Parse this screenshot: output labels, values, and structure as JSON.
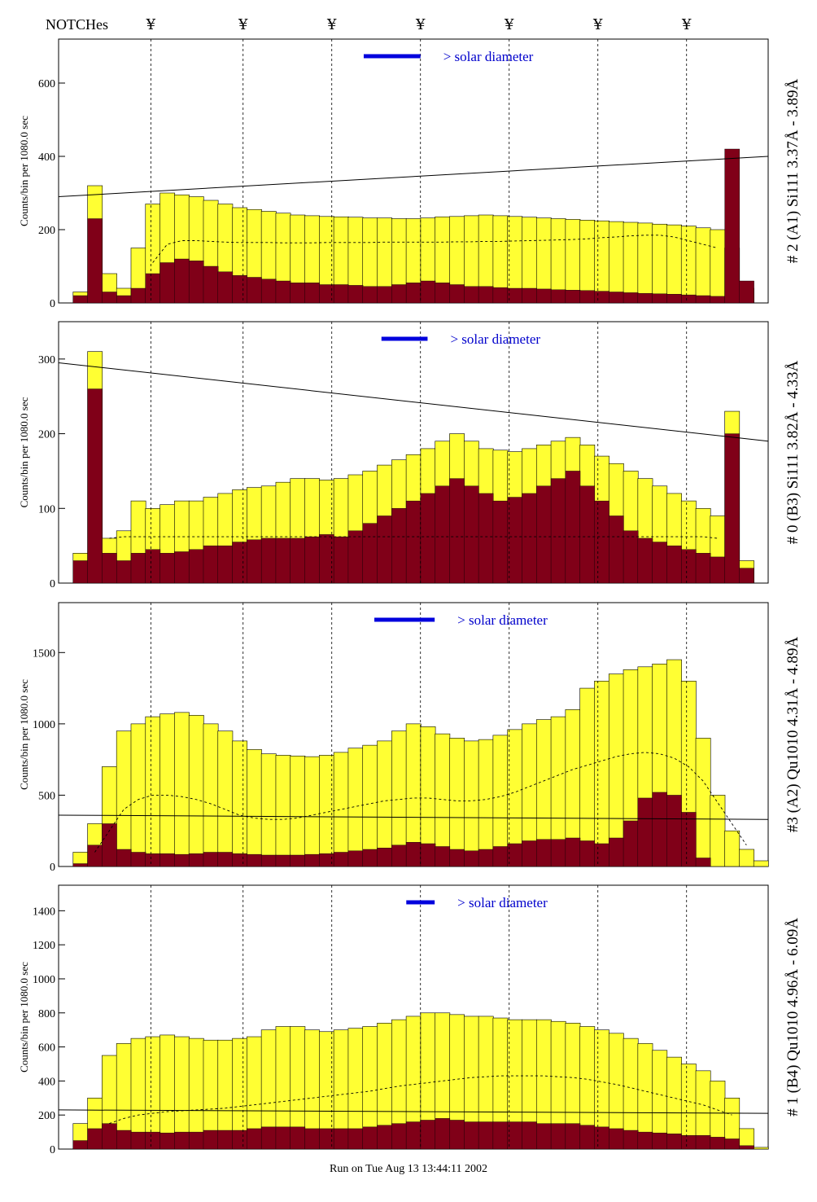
{
  "figure": {
    "notch_title": "NOTCHes",
    "notch_marker": "¥",
    "legend_text": "> solar diameter",
    "ylabel_counts": "Counts/bin per",
    "ylabel_exposure": "1080.0 sec",
    "footer": "Run on Tue Aug 13 13:44:11 2002",
    "colors": {
      "fill_total": "#ffff33",
      "fill_sub": "#800018",
      "legend_bar": "#0000dd",
      "legend_text": "#0000cc",
      "line": "#000000"
    }
  },
  "chart_data": [
    {
      "type": "bar",
      "title": "# 2 (A1) Si111  3.37Å - 3.89Å",
      "ylabel": "Counts/bin per  1080.0 sec",
      "ylim": [
        0,
        720
      ],
      "yticks": [
        0,
        200,
        400,
        600
      ],
      "notches": [
        0.13,
        0.26,
        0.385,
        0.51,
        0.635,
        0.76,
        0.885
      ],
      "series": [
        {
          "name": "total counts",
          "values": [
            0,
            30,
            320,
            80,
            40,
            150,
            270,
            300,
            295,
            290,
            280,
            270,
            260,
            255,
            250,
            245,
            240,
            238,
            236,
            235,
            234,
            232,
            232,
            230,
            230,
            232,
            235,
            236,
            238,
            240,
            238,
            236,
            234,
            232,
            230,
            228,
            226,
            224,
            222,
            220,
            218,
            215,
            213,
            210,
            205,
            200,
            150,
            40,
            0
          ]
        },
        {
          "name": "subset counts",
          "values": [
            0,
            20,
            230,
            30,
            20,
            40,
            80,
            110,
            120,
            115,
            100,
            85,
            75,
            70,
            65,
            60,
            55,
            55,
            50,
            50,
            48,
            45,
            45,
            50,
            55,
            60,
            55,
            50,
            45,
            45,
            42,
            40,
            40,
            38,
            36,
            35,
            34,
            32,
            30,
            28,
            26,
            25,
            24,
            22,
            20,
            18,
            420,
            60,
            0
          ]
        }
      ],
      "continuum": {
        "name": "background model",
        "values": [
          0,
          0,
          0,
          0,
          0,
          0,
          110,
          160,
          170,
          170,
          168,
          166,
          165,
          165,
          165,
          164,
          164,
          164,
          165,
          165,
          165,
          165,
          166,
          166,
          166,
          166,
          166,
          167,
          167,
          168,
          168,
          169,
          170,
          171,
          172,
          173,
          175,
          178,
          180,
          183,
          185,
          185,
          180,
          170,
          160,
          150,
          0,
          0,
          0
        ]
      },
      "trend_line": [
        290,
        400
      ],
      "legend_bar_at": [
        0.43,
        0.51
      ]
    },
    {
      "type": "bar",
      "title": "# 0 (B3) Si111  3.82Å - 4.33Å",
      "ylabel": "Counts/bin per  1080.0 sec",
      "ylim": [
        0,
        350
      ],
      "yticks": [
        0,
        100,
        200,
        300
      ],
      "notches": [
        0.13,
        0.26,
        0.385,
        0.51,
        0.635,
        0.76,
        0.885
      ],
      "series": [
        {
          "name": "total counts",
          "values": [
            0,
            40,
            310,
            60,
            70,
            110,
            100,
            105,
            110,
            110,
            115,
            120,
            125,
            128,
            130,
            135,
            140,
            140,
            138,
            140,
            145,
            150,
            158,
            165,
            172,
            180,
            190,
            200,
            190,
            180,
            178,
            176,
            180,
            185,
            190,
            195,
            185,
            170,
            160,
            150,
            140,
            130,
            120,
            110,
            100,
            90,
            230,
            30,
            0
          ]
        },
        {
          "name": "subset counts",
          "values": [
            0,
            30,
            260,
            40,
            30,
            40,
            45,
            40,
            42,
            45,
            50,
            50,
            55,
            58,
            60,
            60,
            60,
            62,
            65,
            62,
            70,
            80,
            90,
            100,
            110,
            120,
            130,
            140,
            130,
            120,
            110,
            115,
            120,
            130,
            140,
            150,
            130,
            110,
            90,
            70,
            60,
            55,
            50,
            45,
            40,
            35,
            200,
            20,
            0
          ]
        }
      ],
      "continuum": {
        "name": "background model",
        "values": [
          0,
          0,
          0,
          60,
          62,
          62,
          62,
          62,
          62,
          62,
          62,
          62,
          62,
          62,
          62,
          62,
          62,
          62,
          62,
          62,
          62,
          62,
          62,
          62,
          62,
          62,
          62,
          62,
          62,
          62,
          62,
          62,
          62,
          62,
          62,
          62,
          62,
          62,
          62,
          62,
          62,
          62,
          62,
          62,
          62,
          60,
          0,
          0,
          0
        ]
      },
      "trend_line": [
        295,
        190
      ],
      "legend_bar_at": [
        0.455,
        0.52
      ]
    },
    {
      "type": "bar",
      "title": "#3 (A2) Qu1010  4.31Å - 4.89Å",
      "ylabel": "Counts/bin per  1080.0 sec",
      "ylim": [
        0,
        1850
      ],
      "yticks": [
        0,
        500,
        1000,
        1500
      ],
      "notches": [
        0.13,
        0.26,
        0.385,
        0.51,
        0.635,
        0.76,
        0.885
      ],
      "series": [
        {
          "name": "total counts",
          "values": [
            0,
            100,
            300,
            700,
            950,
            1000,
            1050,
            1070,
            1080,
            1060,
            1000,
            950,
            880,
            820,
            790,
            780,
            775,
            770,
            780,
            800,
            830,
            850,
            880,
            950,
            1000,
            980,
            930,
            900,
            880,
            890,
            920,
            960,
            1000,
            1030,
            1050,
            1100,
            1250,
            1300,
            1350,
            1380,
            1400,
            1420,
            1450,
            1300,
            900,
            500,
            250,
            120,
            40
          ]
        },
        {
          "name": "subset counts",
          "values": [
            0,
            20,
            150,
            300,
            120,
            100,
            90,
            90,
            85,
            90,
            100,
            100,
            90,
            85,
            80,
            80,
            80,
            85,
            90,
            100,
            110,
            120,
            130,
            150,
            170,
            160,
            140,
            120,
            110,
            120,
            140,
            160,
            180,
            190,
            190,
            200,
            180,
            160,
            200,
            320,
            480,
            520,
            500,
            380,
            60,
            0,
            0,
            0,
            0
          ]
        }
      ],
      "continuum": {
        "name": "background model",
        "values": [
          0,
          0,
          100,
          250,
          400,
          470,
          500,
          500,
          490,
          470,
          440,
          400,
          360,
          340,
          330,
          330,
          340,
          360,
          380,
          400,
          420,
          440,
          460,
          470,
          480,
          480,
          470,
          460,
          460,
          470,
          490,
          520,
          560,
          600,
          640,
          680,
          710,
          740,
          770,
          790,
          800,
          790,
          760,
          700,
          600,
          450,
          300,
          150,
          0
        ]
      },
      "trend_line": [
        360,
        330
      ],
      "legend_bar_at": [
        0.445,
        0.53
      ]
    },
    {
      "type": "bar",
      "title": "# 1 (B4) Qu1010 4.96Å - 6.09Å",
      "ylabel": "Counts/bin per  1080.0 sec",
      "ylim": [
        0,
        1550
      ],
      "yticks": [
        0,
        200,
        400,
        600,
        800,
        1000,
        1200,
        1400
      ],
      "notches": [
        0.13,
        0.26,
        0.385,
        0.51,
        0.635,
        0.76,
        0.885
      ],
      "series": [
        {
          "name": "total counts",
          "values": [
            0,
            150,
            300,
            550,
            620,
            650,
            660,
            670,
            660,
            650,
            640,
            640,
            650,
            660,
            700,
            720,
            720,
            700,
            690,
            700,
            710,
            720,
            740,
            760,
            780,
            800,
            800,
            790,
            780,
            780,
            770,
            760,
            760,
            760,
            750,
            740,
            720,
            700,
            680,
            650,
            620,
            580,
            540,
            500,
            460,
            400,
            300,
            120,
            10
          ]
        },
        {
          "name": "subset counts",
          "values": [
            0,
            50,
            120,
            150,
            110,
            100,
            100,
            95,
            100,
            100,
            110,
            110,
            110,
            120,
            130,
            130,
            130,
            120,
            120,
            120,
            120,
            130,
            140,
            150,
            160,
            170,
            180,
            170,
            160,
            160,
            160,
            160,
            160,
            150,
            150,
            150,
            140,
            130,
            120,
            110,
            100,
            95,
            90,
            80,
            80,
            70,
            60,
            20,
            0
          ]
        }
      ],
      "continuum": {
        "name": "background model",
        "values": [
          0,
          0,
          0,
          150,
          180,
          200,
          210,
          220,
          225,
          230,
          235,
          240,
          250,
          260,
          270,
          280,
          290,
          300,
          310,
          320,
          330,
          340,
          355,
          370,
          380,
          390,
          400,
          410,
          420,
          425,
          430,
          430,
          430,
          430,
          425,
          420,
          410,
          395,
          380,
          360,
          340,
          320,
          300,
          280,
          260,
          230,
          200,
          0,
          0
        ]
      },
      "trend_line": [
        230,
        210
      ],
      "legend_bar_at": [
        0.49,
        0.53
      ]
    }
  ]
}
